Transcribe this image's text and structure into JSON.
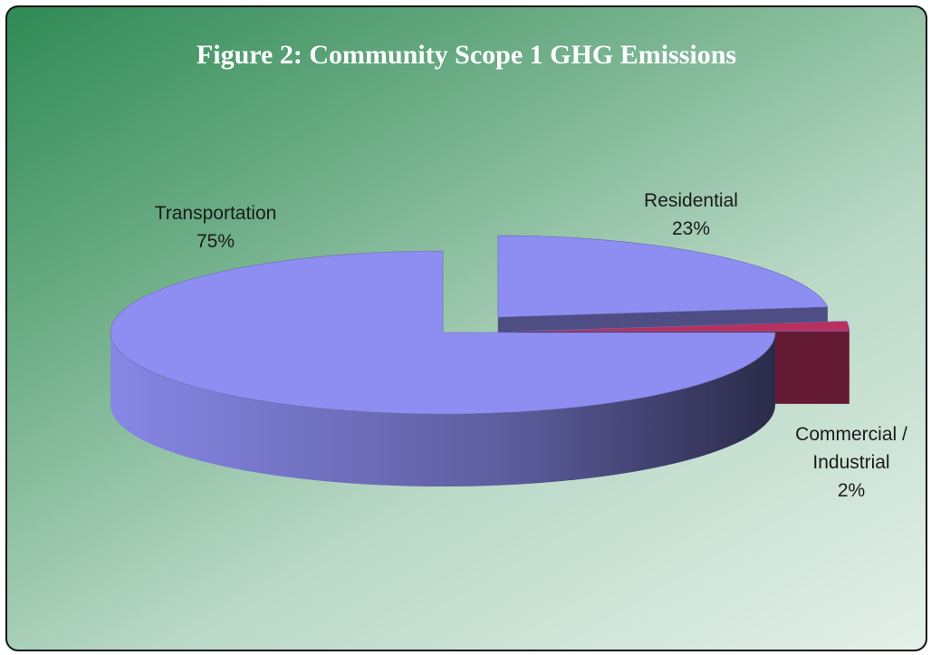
{
  "chart_data": {
    "type": "pie3d",
    "title": "Figure 2: Community Scope 1 GHG Emissions",
    "categories": [
      "Transportation",
      "Residential",
      "Commercial / Industrial"
    ],
    "values": [
      75,
      23,
      2
    ],
    "value_labels": [
      "75%",
      "23%",
      "2%"
    ],
    "colors": [
      "#8e8ef2",
      "#8e8ef2",
      "#b8305e"
    ]
  }
}
